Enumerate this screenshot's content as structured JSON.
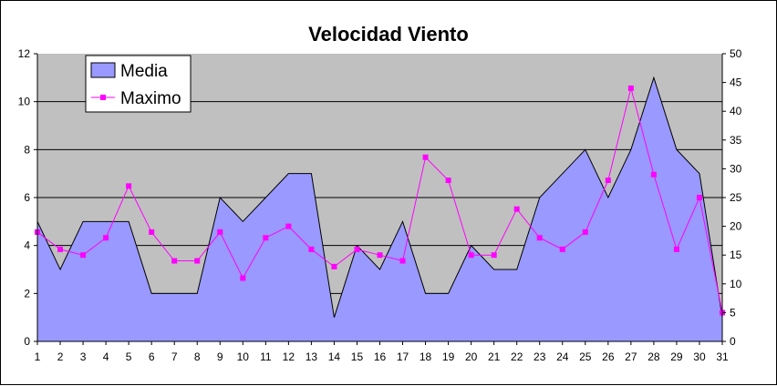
{
  "chart_data": {
    "type": "area",
    "title": "Velocidad Viento",
    "categories": [
      "1",
      "2",
      "3",
      "4",
      "5",
      "6",
      "7",
      "8",
      "9",
      "10",
      "11",
      "12",
      "13",
      "14",
      "15",
      "16",
      "17",
      "18",
      "19",
      "20",
      "21",
      "22",
      "23",
      "24",
      "25",
      "26",
      "27",
      "28",
      "29",
      "30",
      "31"
    ],
    "series": [
      {
        "name": "Media",
        "type": "area",
        "axis": "left",
        "color": "#9999ff",
        "values": [
          5,
          3,
          5,
          5,
          5,
          2,
          2,
          2,
          6,
          5,
          6,
          7,
          7,
          1,
          4,
          3,
          5,
          2,
          2,
          4,
          3,
          3,
          6,
          7,
          8,
          6,
          8,
          11,
          8,
          7,
          1
        ]
      },
      {
        "name": "Maximo",
        "type": "line",
        "axis": "right",
        "color": "#ff00ff",
        "values": [
          19,
          16,
          15,
          18,
          27,
          19,
          14,
          14,
          19,
          11,
          18,
          20,
          16,
          13,
          16,
          15,
          14,
          32,
          28,
          15,
          15,
          23,
          18,
          16,
          19,
          28,
          44,
          29,
          16,
          25,
          5
        ]
      }
    ],
    "y_left": {
      "min": 0,
      "max": 12,
      "ticks": [
        "0",
        "2",
        "4",
        "6",
        "8",
        "10",
        "12"
      ]
    },
    "y_right": {
      "min": 0,
      "max": 50,
      "ticks": [
        "0",
        "5",
        "10",
        "15",
        "20",
        "25",
        "30",
        "35",
        "40",
        "45",
        "50"
      ]
    },
    "grid": true,
    "legend_position": "top-left",
    "plot_background": "#c0c0c0"
  }
}
